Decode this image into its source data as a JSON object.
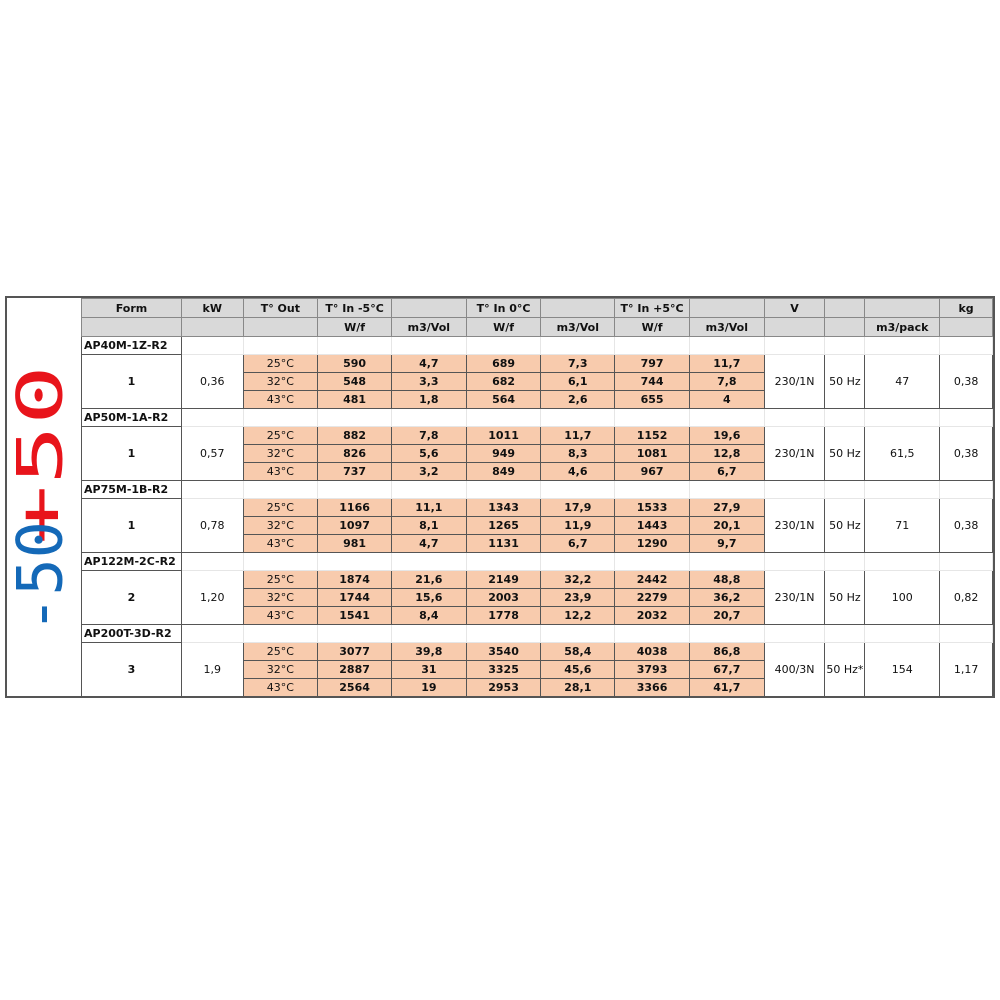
{
  "side_labels": {
    "top": "+50",
    "bottom": "-50",
    "top_color": "#e8141b",
    "bottom_color": "#1469b8"
  },
  "colors": {
    "header": "#d9d9d9",
    "highlight": "#f8cbad"
  },
  "header1": [
    "Form",
    "kW",
    "T° Out",
    "T° In -5°C",
    "",
    "T° In 0°C",
    "",
    "T° In +5°C",
    "",
    "V",
    "",
    "",
    "kg"
  ],
  "header2": [
    "",
    "",
    "",
    "W/f",
    "m3/Vol",
    "W/f",
    "m3/Vol",
    "W/f",
    "m3/Vol",
    "",
    "",
    "m3/pack",
    ""
  ],
  "models": [
    {
      "name": "AP40M-1Z-R2",
      "form": "1",
      "kw": "0,36",
      "v": "230/1N",
      "hz": "50 Hz",
      "pack": "47",
      "kg": "0,38",
      "rows": [
        [
          "25°C",
          "590",
          "4,7",
          "689",
          "7,3",
          "797",
          "11,7"
        ],
        [
          "32°C",
          "548",
          "3,3",
          "682",
          "6,1",
          "744",
          "7,8"
        ],
        [
          "43°C",
          "481",
          "1,8",
          "564",
          "2,6",
          "655",
          "4"
        ]
      ]
    },
    {
      "name": "AP50M-1A-R2",
      "form": "1",
      "kw": "0,57",
      "v": "230/1N",
      "hz": "50 Hz",
      "pack": "61,5",
      "kg": "0,38",
      "rows": [
        [
          "25°C",
          "882",
          "7,8",
          "1011",
          "11,7",
          "1152",
          "19,6"
        ],
        [
          "32°C",
          "826",
          "5,6",
          "949",
          "8,3",
          "1081",
          "12,8"
        ],
        [
          "43°C",
          "737",
          "3,2",
          "849",
          "4,6",
          "967",
          "6,7"
        ]
      ]
    },
    {
      "name": "AP75M-1B-R2",
      "form": "1",
      "kw": "0,78",
      "v": "230/1N",
      "hz": "50 Hz",
      "pack": "71",
      "kg": "0,38",
      "rows": [
        [
          "25°C",
          "1166",
          "11,1",
          "1343",
          "17,9",
          "1533",
          "27,9"
        ],
        [
          "32°C",
          "1097",
          "8,1",
          "1265",
          "11,9",
          "1443",
          "20,1"
        ],
        [
          "43°C",
          "981",
          "4,7",
          "1131",
          "6,7",
          "1290",
          "9,7"
        ]
      ]
    },
    {
      "name": "AP122M-2C-R2",
      "form": "2",
      "kw": "1,20",
      "v": "230/1N",
      "hz": "50 Hz",
      "pack": "100",
      "kg": "0,82",
      "rows": [
        [
          "25°C",
          "1874",
          "21,6",
          "2149",
          "32,2",
          "2442",
          "48,8"
        ],
        [
          "32°C",
          "1744",
          "15,6",
          "2003",
          "23,9",
          "2279",
          "36,2"
        ],
        [
          "43°C",
          "1541",
          "8,4",
          "1778",
          "12,2",
          "2032",
          "20,7"
        ]
      ]
    },
    {
      "name": "AP200T-3D-R2",
      "form": "3",
      "kw": "1,9",
      "v": "400/3N",
      "hz": "50 Hz*",
      "pack": "154",
      "kg": "1,17",
      "rows": [
        [
          "25°C",
          "3077",
          "39,8",
          "3540",
          "58,4",
          "4038",
          "86,8"
        ],
        [
          "32°C",
          "2887",
          "31",
          "3325",
          "45,6",
          "3793",
          "67,7"
        ],
        [
          "43°C",
          "2564",
          "19",
          "2953",
          "28,1",
          "3366",
          "41,7"
        ]
      ]
    }
  ]
}
